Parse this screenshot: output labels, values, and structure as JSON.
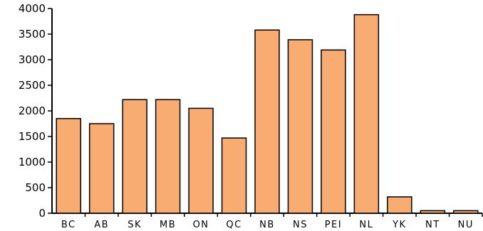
{
  "chart_data": {
    "type": "bar",
    "title": "",
    "xlabel": "",
    "ylabel": "",
    "categories": [
      "BC",
      "AB",
      "SK",
      "MB",
      "ON",
      "QC",
      "NB",
      "NS",
      "PEI",
      "NL",
      "YK",
      "NT",
      "NU"
    ],
    "values": [
      1850,
      1750,
      2220,
      2220,
      2050,
      1470,
      3580,
      3390,
      3190,
      3880,
      320,
      50,
      50
    ],
    "ylim": [
      0,
      4000
    ],
    "yticks": [
      0,
      500,
      1000,
      1500,
      2000,
      2500,
      3000,
      3500,
      4000
    ],
    "ytick_labels": [
      "0",
      "500",
      "1000",
      "1500",
      "2000",
      "2500",
      "3000",
      "3500",
      "4000"
    ],
    "grid": false,
    "legend": "none",
    "colors": {
      "bar_fill": "#F8AC72",
      "bar_stroke": "#000000",
      "axis": "#000000"
    }
  }
}
